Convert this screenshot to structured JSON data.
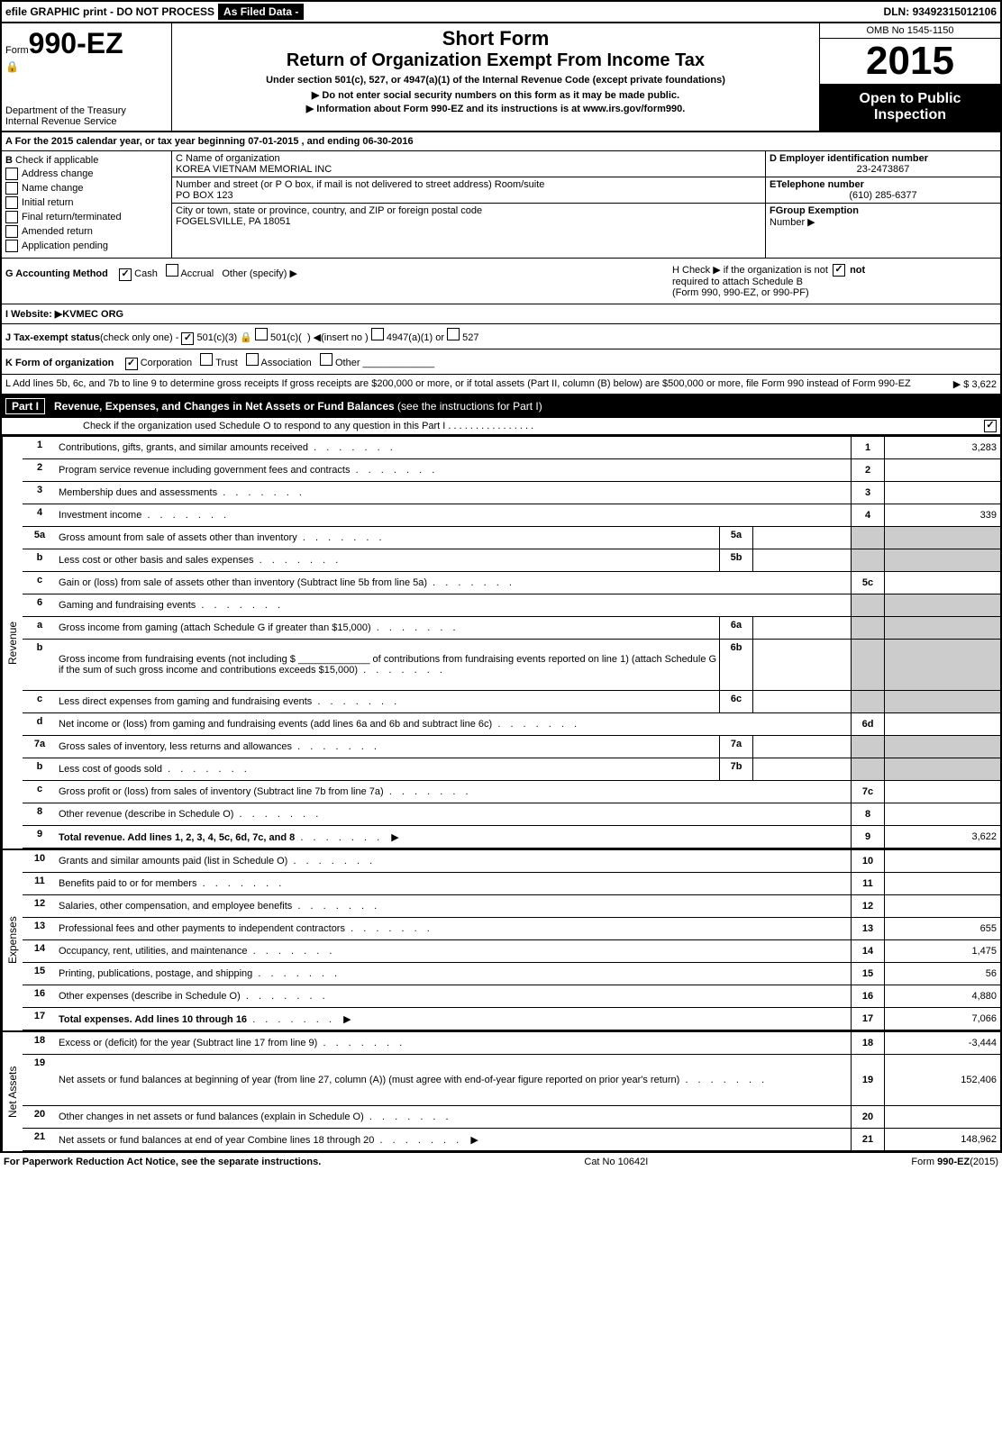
{
  "top_bar": {
    "efile": "efile GRAPHIC print - DO NOT PROCESS",
    "as_filed": "As Filed Data -",
    "dln_label": "DLN:",
    "dln": "93492315012106"
  },
  "header": {
    "form_label": "Form",
    "form_number": "990-EZ",
    "dept1": "Department of the Treasury",
    "dept2": "Internal Revenue Service",
    "short_form": "Short Form",
    "title": "Return of Organization Exempt From Income Tax",
    "under": "Under section 501(c), 527, or 4947(a)(1) of the Internal Revenue Code (except private foundations)",
    "warn": "▶ Do not enter social security numbers on this form as it may be made public.",
    "info": "▶ Information about Form 990-EZ and its instructions is at www.irs.gov/form990.",
    "omb": "OMB No 1545-1150",
    "year": "2015",
    "open1": "Open to Public",
    "open2": "Inspection"
  },
  "row_a": "A  For the 2015 calendar year, or tax year beginning 07-01-2015            , and ending 06-30-2016",
  "section_b": {
    "label": "B",
    "check_label": "Check if applicable",
    "items": [
      "Address change",
      "Name change",
      "Initial return",
      "Final return/terminated",
      "Amended return",
      "Application pending"
    ]
  },
  "section_c": {
    "c_label": "C Name of organization",
    "c_name": "KOREA VIETNAM MEMORIAL INC",
    "street_label": "Number and street (or P O box, if mail is not delivered to street address) Room/suite",
    "street": "PO BOX 123",
    "city_label": "City or town, state or province, country, and ZIP or foreign postal code",
    "city": "FOGELSVILLE, PA  18051"
  },
  "section_d": {
    "d_label": "D Employer identification number",
    "d_val": "23-2473867",
    "e_label": "ETelephone number",
    "e_val": "(610) 285-6377",
    "f_label": "FGroup Exemption",
    "f_label2": "Number    ▶"
  },
  "row_g": {
    "g_label": "G Accounting Method",
    "cash": "Cash",
    "accrual": "Accrual",
    "other": "Other (specify) ▶",
    "h_text": "H   Check ▶         if the organization is not",
    "h_text2": "required to attach Schedule B",
    "h_text3": "(Form 990, 990-EZ, or 990-PF)"
  },
  "row_i": "I Website: ▶KVMEC ORG",
  "row_j": "J Tax-exempt status(check only one) -       501(c)(3)         501(c)(  ) ◀(insert no )      4947(a)(1) or       527",
  "row_k": {
    "label": "K Form of organization",
    "corp": "Corporation",
    "trust": "Trust",
    "assoc": "Association",
    "other": "Other"
  },
  "row_l": {
    "text": "L Add lines 5b, 6c, and 7b to line 9 to determine gross receipts If gross receipts are $200,000 or more, or if total assets (Part II, column (B) below) are $500,000 or more, file Form 990 instead of Form 990-EZ",
    "arrow": "▶ $",
    "val": "3,622"
  },
  "part1": {
    "label": "Part I",
    "title": "Revenue, Expenses, and Changes in Net Assets or Fund Balances",
    "desc": "(see the instructions for Part I)",
    "schedule_o": "Check if the organization used Schedule O to respond to any question in this Part I"
  },
  "revenue_lines": [
    {
      "n": "1",
      "d": "Contributions, gifts, grants, and similar amounts received",
      "box": "1",
      "v": "3,283"
    },
    {
      "n": "2",
      "d": "Program service revenue including government fees and contracts",
      "box": "2",
      "v": ""
    },
    {
      "n": "3",
      "d": "Membership dues and assessments",
      "box": "3",
      "v": ""
    },
    {
      "n": "4",
      "d": "Investment income",
      "box": "4",
      "v": "339"
    },
    {
      "n": "5a",
      "d": "Gross amount from sale of assets other than inventory",
      "sub": "5a",
      "subv": "",
      "shaded": true
    },
    {
      "n": "b",
      "d": "Less cost or other basis and sales expenses",
      "sub": "5b",
      "subv": "",
      "shaded": true
    },
    {
      "n": "c",
      "d": "Gain or (loss) from sale of assets other than inventory (Subtract line 5b from line 5a)",
      "box": "5c",
      "v": ""
    },
    {
      "n": "6",
      "d": "Gaming and fundraising events",
      "shaded": true,
      "noval": true
    },
    {
      "n": "a",
      "d": "Gross income from gaming (attach Schedule G if greater than $15,000)",
      "sub": "6a",
      "subv": "",
      "shaded": true
    },
    {
      "n": "b",
      "d": "Gross income from fundraising events (not including $ _____________ of contributions from fundraising events reported on line 1) (attach Schedule G if the sum of such gross income and contributions exceeds $15,000)",
      "sub": "6b",
      "subv": "",
      "shaded": true,
      "tall": true
    },
    {
      "n": "c",
      "d": "Less direct expenses from gaming and fundraising events",
      "sub": "6c",
      "subv": "",
      "shaded": true
    },
    {
      "n": "d",
      "d": "Net income or (loss) from gaming and fundraising events (add lines 6a and 6b and subtract line 6c)",
      "box": "6d",
      "v": ""
    },
    {
      "n": "7a",
      "d": "Gross sales of inventory, less returns and allowances",
      "sub": "7a",
      "subv": "",
      "shaded": true
    },
    {
      "n": "b",
      "d": "Less cost of goods sold",
      "sub": "7b",
      "subv": "",
      "shaded": true
    },
    {
      "n": "c",
      "d": "Gross profit or (loss) from sales of inventory (Subtract line 7b from line 7a)",
      "box": "7c",
      "v": ""
    },
    {
      "n": "8",
      "d": "Other revenue (describe in Schedule O)",
      "box": "8",
      "v": ""
    },
    {
      "n": "9",
      "d": "Total revenue. Add lines 1, 2, 3, 4, 5c, 6d, 7c, and 8",
      "box": "9",
      "v": "3,622",
      "bold": true,
      "arrow": true
    }
  ],
  "expense_lines": [
    {
      "n": "10",
      "d": "Grants and similar amounts paid (list in Schedule O)",
      "box": "10",
      "v": ""
    },
    {
      "n": "11",
      "d": "Benefits paid to or for members",
      "box": "11",
      "v": ""
    },
    {
      "n": "12",
      "d": "Salaries, other compensation, and employee benefits",
      "box": "12",
      "v": ""
    },
    {
      "n": "13",
      "d": "Professional fees and other payments to independent contractors",
      "box": "13",
      "v": "655"
    },
    {
      "n": "14",
      "d": "Occupancy, rent, utilities, and maintenance",
      "box": "14",
      "v": "1,475"
    },
    {
      "n": "15",
      "d": "Printing, publications, postage, and shipping",
      "box": "15",
      "v": "56"
    },
    {
      "n": "16",
      "d": "Other expenses (describe in Schedule O)",
      "box": "16",
      "v": "4,880"
    },
    {
      "n": "17",
      "d": "Total expenses. Add lines 10 through 16",
      "box": "17",
      "v": "7,066",
      "bold": true,
      "arrow": true
    }
  ],
  "netassets_lines": [
    {
      "n": "18",
      "d": "Excess or (deficit) for the year (Subtract line 17 from line 9)",
      "box": "18",
      "v": "-3,444"
    },
    {
      "n": "19",
      "d": "Net assets or fund balances at beginning of year (from line 27, column (A)) (must agree with end-of-year figure reported on prior year's return)",
      "box": "19",
      "v": "152,406",
      "tall": true
    },
    {
      "n": "20",
      "d": "Other changes in net assets or fund balances (explain in Schedule O)",
      "box": "20",
      "v": ""
    },
    {
      "n": "21",
      "d": "Net assets or fund balances at end of year Combine lines 18 through 20",
      "box": "21",
      "v": "148,962",
      "arrow": true
    }
  ],
  "side_labels": {
    "rev": "Revenue",
    "exp": "Expenses",
    "na": "Net Assets"
  },
  "footer": {
    "left": "For Paperwork Reduction Act Notice, see the separate instructions.",
    "mid": "Cat No 10642I",
    "right": "Form 990-EZ (2015)"
  }
}
